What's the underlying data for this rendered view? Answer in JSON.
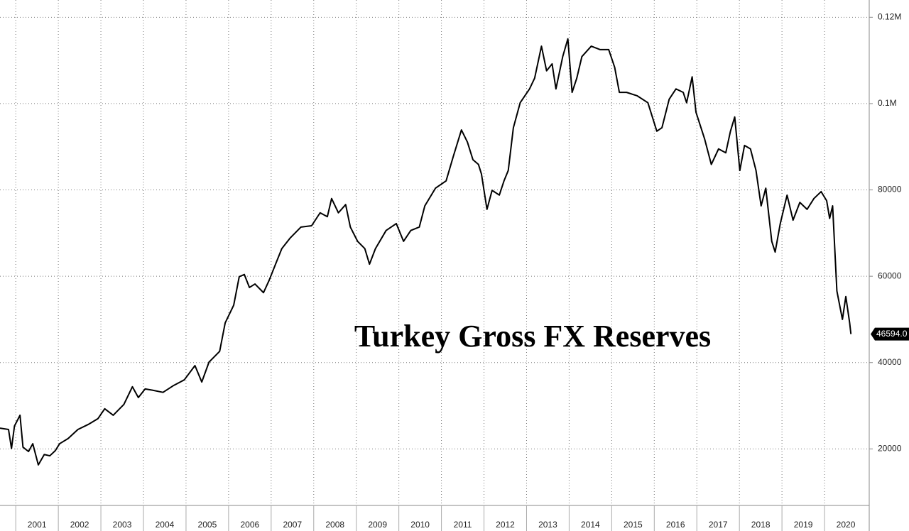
{
  "chart_data": {
    "type": "line",
    "title": "Turkey Gross FX Reserves",
    "x": [
      2000.63,
      2000.83,
      2000.9,
      2000.97,
      2001.1,
      2001.17,
      2001.3,
      2001.4,
      2001.53,
      2001.67,
      2001.8,
      2001.93,
      2002.03,
      2002.23,
      2002.46,
      2002.71,
      2002.93,
      2003.09,
      2003.29,
      2003.54,
      2003.74,
      2003.88,
      2004.04,
      2004.21,
      2004.46,
      2004.71,
      2004.96,
      2005.21,
      2005.37,
      2005.54,
      2005.79,
      2005.92,
      2006.12,
      2006.25,
      2006.37,
      2006.49,
      2006.62,
      2006.82,
      2006.95,
      2007.12,
      2007.25,
      2007.45,
      2007.7,
      2007.95,
      2008.15,
      2008.32,
      2008.42,
      2008.58,
      2008.75,
      2008.86,
      2009.03,
      2009.2,
      2009.31,
      2009.45,
      2009.7,
      2009.94,
      2010.11,
      2010.28,
      2010.48,
      2010.61,
      2010.86,
      2011.11,
      2011.28,
      2011.47,
      2011.61,
      2011.74,
      2011.87,
      2011.94,
      2012.07,
      2012.19,
      2012.36,
      2012.47,
      2012.57,
      2012.69,
      2012.85,
      2013.07,
      2013.19,
      2013.35,
      2013.47,
      2013.6,
      2013.69,
      2013.85,
      2013.97,
      2014.07,
      2014.18,
      2014.3,
      2014.52,
      2014.73,
      2014.93,
      2015.07,
      2015.18,
      2015.35,
      2015.6,
      2015.85,
      2016.06,
      2016.18,
      2016.35,
      2016.51,
      2016.68,
      2016.76,
      2016.89,
      2016.98,
      2017.18,
      2017.34,
      2017.51,
      2017.68,
      2017.79,
      2017.89,
      2018.01,
      2018.12,
      2018.26,
      2018.39,
      2018.51,
      2018.62,
      2018.76,
      2018.84,
      2018.96,
      2019.12,
      2019.26,
      2019.42,
      2019.59,
      2019.75,
      2019.92,
      2020.05,
      2020.12,
      2020.19,
      2020.29,
      2020.42,
      2020.5,
      2020.59,
      2020.62
    ],
    "values": [
      24800,
      24500,
      20100,
      25300,
      27800,
      20400,
      19400,
      21200,
      16300,
      18700,
      18400,
      19600,
      21200,
      22400,
      24500,
      25700,
      27000,
      29300,
      27800,
      30300,
      34400,
      31900,
      33900,
      33600,
      33100,
      34700,
      36000,
      39300,
      35500,
      40100,
      42600,
      49200,
      53300,
      59900,
      60400,
      57400,
      58200,
      56200,
      59000,
      63200,
      66400,
      68900,
      71400,
      71700,
      74700,
      73800,
      78000,
      74700,
      76600,
      71400,
      68100,
      66400,
      62800,
      66400,
      70600,
      72200,
      68100,
      70600,
      71400,
      76300,
      80400,
      82100,
      87800,
      93900,
      91100,
      87000,
      85900,
      83700,
      75500,
      79900,
      78800,
      82100,
      84500,
      94400,
      100200,
      103400,
      105900,
      113300,
      107600,
      109200,
      103400,
      110900,
      115000,
      102600,
      105900,
      110900,
      113300,
      112500,
      112500,
      108400,
      102600,
      102600,
      101800,
      100200,
      93600,
      94400,
      101000,
      103400,
      102600,
      100200,
      106200,
      98000,
      91900,
      85900,
      89500,
      88600,
      93600,
      96900,
      84500,
      90300,
      89500,
      84500,
      76300,
      80400,
      68100,
      65600,
      72200,
      78800,
      73000,
      77100,
      75500,
      78000,
      79600,
      77500,
      73400,
      76300,
      56600,
      50000,
      55300,
      49200,
      46594
    ],
    "color": "#000000",
    "end_label": {
      "value": 46594,
      "label": "46594.0"
    },
    "xlim": [
      2000.63,
      2021.05
    ],
    "xticks": [
      2001,
      2002,
      2003,
      2004,
      2005,
      2006,
      2007,
      2008,
      2009,
      2010,
      2011,
      2012,
      2013,
      2014,
      2015,
      2016,
      2017,
      2018,
      2019,
      2020
    ],
    "ylim": [
      6900,
      124000
    ],
    "yticks": [
      20000,
      40000,
      60000,
      80000,
      {
        "value": 100000,
        "label": "0.1M"
      },
      {
        "value": 120000,
        "label": "0.12M"
      }
    ],
    "grid": true
  }
}
